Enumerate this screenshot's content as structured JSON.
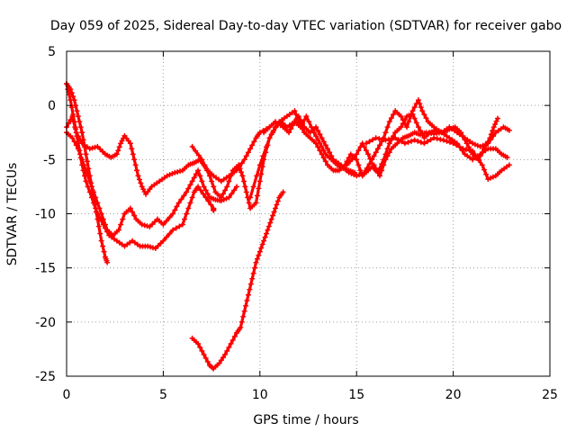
{
  "chart_data": {
    "type": "scatter",
    "title": "Day 059 of 2025, Sidereal Day-to-day VTEC variation (SDTVAR) for receiver gabo",
    "xlabel": "GPS time / hours",
    "ylabel": "SDTVAR / TECUs",
    "xlim": [
      0,
      25
    ],
    "ylim": [
      -25,
      5
    ],
    "xticks": [
      "0",
      "5",
      "10",
      "15",
      "20",
      "25"
    ],
    "yticks": [
      "-25",
      "-20",
      "-15",
      "-10",
      "-5",
      "0",
      "5"
    ],
    "grid": true,
    "marker": "plus",
    "color": "#ff0000",
    "series": [
      {
        "points": [
          [
            0.0,
            2.0
          ],
          [
            0.2,
            1.5
          ],
          [
            0.4,
            0.5
          ],
          [
            0.6,
            -1.0
          ],
          [
            0.8,
            -2.5
          ],
          [
            1.0,
            -4.5
          ],
          [
            1.2,
            -6.5
          ],
          [
            1.4,
            -8.5
          ],
          [
            1.6,
            -10.5
          ],
          [
            1.8,
            -12.5
          ],
          [
            2.0,
            -14.0
          ],
          [
            2.1,
            -14.5
          ]
        ]
      },
      {
        "points": [
          [
            0.0,
            2.0
          ],
          [
            0.2,
            0.5
          ],
          [
            0.4,
            -1.5
          ],
          [
            0.6,
            -3.5
          ],
          [
            0.8,
            -5.5
          ],
          [
            1.0,
            -7.0
          ],
          [
            1.3,
            -8.5
          ],
          [
            1.6,
            -10.0
          ],
          [
            1.9,
            -11.0
          ],
          [
            2.2,
            -12.0
          ],
          [
            2.6,
            -12.5
          ],
          [
            3.0,
            -13.0
          ],
          [
            3.4,
            -12.5
          ],
          [
            3.8,
            -13.0
          ],
          [
            4.2,
            -13.0
          ],
          [
            4.6,
            -13.2
          ],
          [
            5.0,
            -12.5
          ],
          [
            5.5,
            -11.5
          ],
          [
            6.0,
            -11.0
          ],
          [
            6.3,
            -9.5
          ],
          [
            6.6,
            -8.0
          ],
          [
            6.8,
            -7.5
          ],
          [
            7.2,
            -8.5
          ],
          [
            7.6,
            -9.5
          ],
          [
            7.6,
            -9.7
          ]
        ]
      },
      {
        "points": [
          [
            0.0,
            -2.5
          ],
          [
            0.3,
            -3.0
          ],
          [
            0.6,
            -4.0
          ],
          [
            0.9,
            -5.5
          ],
          [
            1.2,
            -7.0
          ],
          [
            1.5,
            -8.5
          ],
          [
            1.8,
            -10.0
          ],
          [
            2.1,
            -11.5
          ],
          [
            2.4,
            -12.0
          ],
          [
            2.7,
            -11.5
          ],
          [
            3.0,
            -10.0
          ],
          [
            3.3,
            -9.5
          ],
          [
            3.6,
            -10.5
          ],
          [
            3.9,
            -11.0
          ],
          [
            4.3,
            -11.2
          ],
          [
            4.7,
            -10.5
          ],
          [
            5.0,
            -11.0
          ],
          [
            5.5,
            -10.0
          ],
          [
            5.8,
            -9.0
          ],
          [
            6.2,
            -8.0
          ],
          [
            6.5,
            -7.0
          ],
          [
            6.8,
            -6.0
          ],
          [
            7.1,
            -7.5
          ],
          [
            7.4,
            -8.5
          ],
          [
            7.7,
            -8.7
          ],
          [
            8.0,
            -8.8
          ],
          [
            8.4,
            -8.5
          ],
          [
            8.8,
            -7.5
          ]
        ]
      },
      {
        "points": [
          [
            0.0,
            -2.0
          ],
          [
            0.3,
            -1.0
          ],
          [
            0.5,
            -2.5
          ],
          [
            0.8,
            -3.5
          ],
          [
            1.2,
            -4.0
          ],
          [
            1.6,
            -3.8
          ],
          [
            2.0,
            -4.5
          ],
          [
            2.3,
            -4.8
          ],
          [
            2.6,
            -4.5
          ],
          [
            2.8,
            -3.5
          ],
          [
            3.0,
            -2.8
          ],
          [
            3.3,
            -3.5
          ],
          [
            3.5,
            -5.0
          ],
          [
            3.7,
            -6.5
          ],
          [
            3.9,
            -7.5
          ],
          [
            4.1,
            -8.2
          ],
          [
            4.4,
            -7.5
          ],
          [
            4.8,
            -7.0
          ],
          [
            5.2,
            -6.5
          ],
          [
            5.6,
            -6.2
          ],
          [
            6.0,
            -6.0
          ],
          [
            6.3,
            -5.5
          ],
          [
            6.6,
            -5.3
          ],
          [
            6.9,
            -5.0
          ],
          [
            7.1,
            -5.5
          ],
          [
            7.3,
            -6.0
          ],
          [
            7.6,
            -6.5
          ],
          [
            8.0,
            -7.0
          ],
          [
            8.4,
            -6.5
          ],
          [
            8.8,
            -6.0
          ],
          [
            9.2,
            -5.0
          ],
          [
            9.5,
            -4.0
          ],
          [
            9.8,
            -3.0
          ],
          [
            10.0,
            -2.5
          ],
          [
            10.5,
            -2.0
          ]
        ]
      },
      {
        "points": [
          [
            6.5,
            -3.8
          ],
          [
            7.0,
            -5.0
          ],
          [
            7.4,
            -6.5
          ],
          [
            7.7,
            -8.0
          ],
          [
            8.0,
            -8.5
          ],
          [
            8.3,
            -7.5
          ],
          [
            8.6,
            -6.0
          ],
          [
            8.9,
            -5.5
          ],
          [
            9.1,
            -6.5
          ],
          [
            9.3,
            -8.0
          ],
          [
            9.5,
            -9.5
          ],
          [
            9.8,
            -9.0
          ],
          [
            10.0,
            -7.0
          ],
          [
            10.2,
            -5.0
          ],
          [
            10.5,
            -3.0
          ],
          [
            10.8,
            -2.0
          ],
          [
            11.1,
            -1.5
          ],
          [
            11.4,
            -2.0
          ],
          [
            11.8,
            -1.5
          ],
          [
            12.1,
            -2.0
          ],
          [
            12.4,
            -1.0
          ],
          [
            12.8,
            -2.5
          ],
          [
            13.1,
            -3.5
          ],
          [
            13.4,
            -4.5
          ],
          [
            13.7,
            -5.0
          ],
          [
            14.0,
            -5.5
          ],
          [
            14.3,
            -5.8
          ],
          [
            14.6,
            -6.0
          ],
          [
            14.9,
            -6.2
          ]
        ]
      },
      {
        "points": [
          [
            6.5,
            -21.5
          ],
          [
            6.8,
            -22.0
          ],
          [
            7.1,
            -23.0
          ],
          [
            7.4,
            -24.0
          ],
          [
            7.6,
            -24.3
          ],
          [
            7.9,
            -23.8
          ],
          [
            8.2,
            -23.0
          ],
          [
            8.5,
            -22.0
          ],
          [
            8.8,
            -21.0
          ],
          [
            9.0,
            -20.5
          ],
          [
            9.2,
            -19.0
          ],
          [
            9.4,
            -17.5
          ],
          [
            9.6,
            -16.0
          ],
          [
            9.8,
            -14.5
          ],
          [
            10.0,
            -13.5
          ],
          [
            10.2,
            -12.5
          ],
          [
            10.4,
            -11.5
          ],
          [
            10.6,
            -10.5
          ],
          [
            10.8,
            -9.5
          ],
          [
            11.0,
            -8.5
          ],
          [
            11.2,
            -8.0
          ]
        ]
      },
      {
        "points": [
          [
            9.5,
            -8.5
          ],
          [
            10.0,
            -5.5
          ],
          [
            10.5,
            -3.0
          ],
          [
            11.0,
            -1.5
          ],
          [
            11.4,
            -1.0
          ],
          [
            11.8,
            -0.5
          ],
          [
            12.0,
            -1.5
          ],
          [
            12.3,
            -2.5
          ],
          [
            12.6,
            -3.0
          ],
          [
            12.9,
            -3.5
          ],
          [
            13.2,
            -4.5
          ],
          [
            13.5,
            -5.5
          ],
          [
            13.8,
            -6.0
          ],
          [
            14.1,
            -6.0
          ],
          [
            14.4,
            -5.5
          ],
          [
            14.7,
            -4.5
          ],
          [
            15.0,
            -5.0
          ],
          [
            15.3,
            -6.5
          ],
          [
            15.6,
            -6.0
          ],
          [
            15.9,
            -5.5
          ],
          [
            16.2,
            -6.5
          ],
          [
            16.5,
            -5.0
          ],
          [
            16.8,
            -4.0
          ],
          [
            17.1,
            -3.5
          ],
          [
            17.4,
            -3.0
          ],
          [
            17.7,
            -2.8
          ],
          [
            18.0,
            -2.5
          ],
          [
            18.3,
            -2.7
          ],
          [
            18.6,
            -2.5
          ],
          [
            19.0,
            -2.6
          ],
          [
            19.4,
            -2.5
          ],
          [
            19.8,
            -3.0
          ],
          [
            20.2,
            -3.5
          ],
          [
            20.6,
            -4.5
          ],
          [
            21.0,
            -5.0
          ],
          [
            21.4,
            -4.5
          ],
          [
            21.8,
            -4.0
          ],
          [
            22.2,
            -4.0
          ],
          [
            22.5,
            -4.5
          ],
          [
            22.8,
            -4.8
          ]
        ]
      },
      {
        "points": [
          [
            10.2,
            -2.5
          ],
          [
            10.5,
            -2.0
          ],
          [
            10.8,
            -1.5
          ],
          [
            11.2,
            -2.0
          ],
          [
            11.5,
            -2.5
          ],
          [
            11.8,
            -1.5
          ],
          [
            12.0,
            -1.0
          ],
          [
            12.3,
            -2.0
          ],
          [
            12.6,
            -2.5
          ],
          [
            12.9,
            -2.0
          ],
          [
            13.2,
            -3.0
          ],
          [
            13.5,
            -4.0
          ],
          [
            13.8,
            -5.0
          ],
          [
            14.2,
            -5.5
          ],
          [
            14.6,
            -6.2
          ],
          [
            15.0,
            -6.5
          ],
          [
            15.4,
            -6.2
          ],
          [
            15.8,
            -5.0
          ],
          [
            16.1,
            -4.0
          ],
          [
            16.4,
            -3.0
          ],
          [
            16.7,
            -1.5
          ],
          [
            17.0,
            -0.5
          ],
          [
            17.3,
            -1.0
          ],
          [
            17.6,
            -2.0
          ],
          [
            17.9,
            -0.5
          ],
          [
            18.2,
            0.5
          ],
          [
            18.4,
            -0.5
          ],
          [
            18.7,
            -1.5
          ],
          [
            19.0,
            -2.0
          ],
          [
            19.4,
            -2.5
          ],
          [
            19.8,
            -2.0
          ],
          [
            20.2,
            -2.5
          ],
          [
            20.6,
            -3.0
          ],
          [
            21.0,
            -3.5
          ],
          [
            21.4,
            -3.8
          ],
          [
            21.8,
            -3.5
          ],
          [
            22.2,
            -2.5
          ],
          [
            22.6,
            -2.0
          ],
          [
            22.9,
            -2.3
          ]
        ]
      },
      {
        "points": [
          [
            15.5,
            -3.5
          ],
          [
            16.0,
            -3.0
          ],
          [
            16.5,
            -3.2
          ],
          [
            17.0,
            -3.0
          ],
          [
            17.5,
            -3.5
          ],
          [
            18.0,
            -3.2
          ],
          [
            18.5,
            -3.5
          ],
          [
            19.0,
            -3.0
          ],
          [
            19.5,
            -3.2
          ],
          [
            20.0,
            -3.5
          ],
          [
            20.5,
            -4.0
          ],
          [
            21.0,
            -4.2
          ],
          [
            21.5,
            -5.5
          ],
          [
            21.8,
            -6.8
          ],
          [
            22.2,
            -6.5
          ],
          [
            22.5,
            -6.0
          ],
          [
            22.9,
            -5.5
          ]
        ]
      },
      {
        "points": [
          [
            14.5,
            -5.5
          ],
          [
            15.0,
            -4.5
          ],
          [
            15.3,
            -3.5
          ],
          [
            15.6,
            -4.5
          ],
          [
            15.9,
            -5.8
          ],
          [
            16.1,
            -6.2
          ],
          [
            16.4,
            -5.0
          ],
          [
            16.7,
            -3.5
          ],
          [
            17.0,
            -2.5
          ],
          [
            17.3,
            -2.0
          ],
          [
            17.6,
            -1.0
          ],
          [
            17.9,
            -0.8
          ],
          [
            18.2,
            -2.0
          ],
          [
            18.5,
            -3.0
          ],
          [
            18.8,
            -2.5
          ],
          [
            19.1,
            -2.3
          ],
          [
            19.5,
            -2.5
          ],
          [
            19.8,
            -2.2
          ],
          [
            20.1,
            -2.0
          ],
          [
            20.4,
            -2.5
          ],
          [
            20.7,
            -3.5
          ],
          [
            21.0,
            -4.5
          ],
          [
            21.3,
            -5.0
          ],
          [
            21.6,
            -4.0
          ],
          [
            21.9,
            -3.0
          ],
          [
            22.1,
            -2.0
          ],
          [
            22.3,
            -1.2
          ]
        ]
      }
    ]
  }
}
